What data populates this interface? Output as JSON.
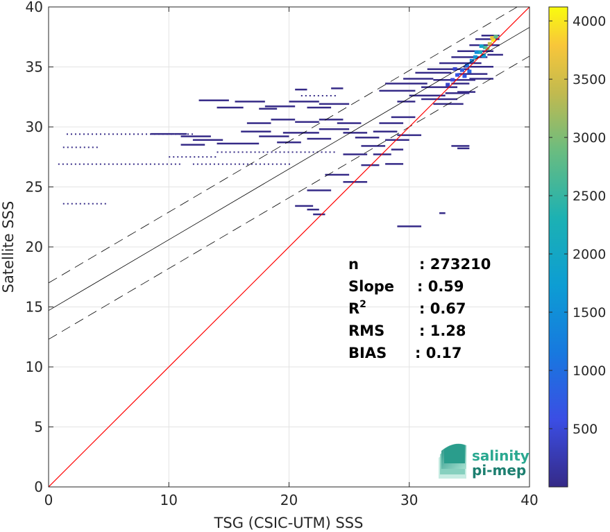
{
  "chart_data": {
    "type": "heatmap",
    "title": "",
    "xlabel": "TSG (CSIC-UTM) SSS",
    "ylabel": "Satellite SSS",
    "xlim": [
      0,
      40
    ],
    "ylim": [
      0,
      40
    ],
    "xticks": [
      "0",
      "10",
      "20",
      "30",
      "40"
    ],
    "yticks": [
      "0",
      "5",
      "10",
      "15",
      "20",
      "25",
      "30",
      "35",
      "40"
    ],
    "grid": true,
    "colormap": "parula",
    "colorbar": {
      "range": [
        0,
        4120
      ],
      "ticks": [
        "500",
        "1000",
        "1500",
        "2000",
        "2500",
        "3000",
        "3500",
        "4000"
      ]
    },
    "reference_lines": {
      "one_to_one": {
        "color": "#ff0000",
        "x": [
          0,
          40
        ],
        "y": [
          0,
          40
        ]
      },
      "regression": {
        "color": "#000000",
        "x": [
          0,
          40
        ],
        "y": [
          14.7,
          38.3
        ]
      },
      "upper_bound": {
        "color": "#000000",
        "style": "dashed",
        "x": [
          0,
          40
        ],
        "y": [
          17.0,
          40.6
        ]
      },
      "lower_bound": {
        "color": "#000000",
        "style": "dashed",
        "x": [
          0,
          40
        ],
        "y": [
          12.3,
          35.9
        ]
      }
    },
    "stats": [
      {
        "label": "n",
        "value": ": 273210"
      },
      {
        "label": "Slope",
        "value": ": 0.59"
      },
      {
        "label": "R",
        "sup": "2",
        "value": ": 0.67"
      },
      {
        "label": "RMS",
        "value": ": 1.28"
      },
      {
        "label": "BIAS",
        "value": ": 0.17"
      }
    ],
    "density_segments": [
      {
        "x0": 12.5,
        "x1": 15.0,
        "y": 32.2
      },
      {
        "x0": 14.0,
        "x1": 16.2,
        "y": 31.6
      },
      {
        "x0": 15.5,
        "x1": 18.0,
        "y": 32.1
      },
      {
        "x0": 18.0,
        "x1": 20.5,
        "y": 31.7
      },
      {
        "x0": 17.5,
        "x1": 19.0,
        "y": 31.5
      },
      {
        "x0": 20.0,
        "x1": 22.5,
        "y": 32.1
      },
      {
        "x0": 21.5,
        "x1": 23.5,
        "y": 31.6
      },
      {
        "x0": 22.5,
        "x1": 25.0,
        "y": 31.9
      },
      {
        "x0": 20.5,
        "x1": 21.5,
        "y": 33.1
      },
      {
        "x0": 23.5,
        "x1": 24.5,
        "y": 33.2
      },
      {
        "x0": 8.5,
        "x1": 10.5,
        "y": 29.4
      },
      {
        "x0": 10.5,
        "x1": 11.5,
        "y": 29.4
      },
      {
        "x0": 11.0,
        "x1": 13.5,
        "y": 29.2
      },
      {
        "x0": 12.0,
        "x1": 14.5,
        "y": 28.9
      },
      {
        "x0": 14.0,
        "x1": 17.5,
        "y": 28.6
      },
      {
        "x0": 16.0,
        "x1": 18.5,
        "y": 29.6
      },
      {
        "x0": 17.5,
        "x1": 20.0,
        "y": 29.2
      },
      {
        "x0": 19.0,
        "x1": 21.0,
        "y": 28.7
      },
      {
        "x0": 11.0,
        "x1": 13.0,
        "y": 28.5
      },
      {
        "x0": 19.5,
        "x1": 22.5,
        "y": 29.5
      },
      {
        "x0": 21.5,
        "x1": 23.5,
        "y": 29.0
      },
      {
        "x0": 22.5,
        "x1": 25.0,
        "y": 29.8
      },
      {
        "x0": 16.5,
        "x1": 18.5,
        "y": 30.3
      },
      {
        "x0": 18.5,
        "x1": 20.5,
        "y": 30.6
      },
      {
        "x0": 20.5,
        "x1": 22.5,
        "y": 30.4
      },
      {
        "x0": 22.5,
        "x1": 24.5,
        "y": 30.6
      },
      {
        "x0": 24.0,
        "x1": 26.0,
        "y": 30.3
      },
      {
        "x0": 24.5,
        "x1": 26.5,
        "y": 29.5
      },
      {
        "x0": 25.5,
        "x1": 27.5,
        "y": 29.1
      },
      {
        "x0": 26.0,
        "x1": 28.0,
        "y": 28.4
      },
      {
        "x0": 27.0,
        "x1": 29.0,
        "y": 29.6
      },
      {
        "x0": 27.5,
        "x1": 29.5,
        "y": 30.3
      },
      {
        "x0": 28.0,
        "x1": 30.0,
        "y": 28.9
      },
      {
        "x0": 28.5,
        "x1": 30.5,
        "y": 30.8
      },
      {
        "x0": 28.5,
        "x1": 29.5,
        "y": 28.1
      },
      {
        "x0": 29.0,
        "x1": 31.0,
        "y": 29.3
      },
      {
        "x0": 24.5,
        "x1": 26.5,
        "y": 27.7
      },
      {
        "x0": 27.0,
        "x1": 28.5,
        "y": 27.7
      },
      {
        "x0": 26.0,
        "x1": 27.5,
        "y": 26.8
      },
      {
        "x0": 28.0,
        "x1": 29.5,
        "y": 26.9
      },
      {
        "x0": 23.0,
        "x1": 25.0,
        "y": 26.0
      },
      {
        "x0": 24.5,
        "x1": 26.5,
        "y": 25.4
      },
      {
        "x0": 21.5,
        "x1": 23.5,
        "y": 24.7
      },
      {
        "x0": 20.5,
        "x1": 22.0,
        "y": 23.4
      },
      {
        "x0": 21.5,
        "x1": 22.5,
        "y": 23.1
      },
      {
        "x0": 22.0,
        "x1": 23.0,
        "y": 22.7
      },
      {
        "x0": 29.0,
        "x1": 31.0,
        "y": 21.7
      },
      {
        "x0": 32.5,
        "x1": 33.0,
        "y": 22.8
      },
      {
        "x0": 33.5,
        "x1": 35.0,
        "y": 28.4
      },
      {
        "x0": 34.0,
        "x1": 35.0,
        "y": 28.2
      },
      {
        "x0": 27.5,
        "x1": 30.5,
        "y": 33.0
      },
      {
        "x0": 28.0,
        "x1": 31.5,
        "y": 33.6
      },
      {
        "x0": 29.5,
        "x1": 32.0,
        "y": 34.0
      },
      {
        "x0": 30.0,
        "x1": 33.0,
        "y": 32.6
      },
      {
        "x0": 30.5,
        "x1": 33.5,
        "y": 34.5
      },
      {
        "x0": 31.0,
        "x1": 34.0,
        "y": 33.3
      },
      {
        "x0": 31.0,
        "x1": 34.0,
        "y": 32.3
      },
      {
        "x0": 31.5,
        "x1": 35.0,
        "y": 34.8
      },
      {
        "x0": 32.0,
        "x1": 35.5,
        "y": 33.9
      },
      {
        "x0": 32.0,
        "x1": 34.5,
        "y": 31.9
      },
      {
        "x0": 32.5,
        "x1": 36.0,
        "y": 35.3
      },
      {
        "x0": 33.0,
        "x1": 35.0,
        "y": 32.8
      },
      {
        "x0": 33.5,
        "x1": 36.5,
        "y": 35.8
      },
      {
        "x0": 34.0,
        "x1": 36.5,
        "y": 34.4
      },
      {
        "x0": 34.0,
        "x1": 37.0,
        "y": 36.3
      },
      {
        "x0": 34.5,
        "x1": 37.0,
        "y": 35.0
      },
      {
        "x0": 35.0,
        "x1": 37.5,
        "y": 36.8
      },
      {
        "x0": 35.0,
        "x1": 37.0,
        "y": 34.0
      },
      {
        "x0": 35.5,
        "x1": 37.5,
        "y": 37.3
      },
      {
        "x0": 36.0,
        "x1": 37.5,
        "y": 37.6
      },
      {
        "x0": 33.5,
        "x1": 35.0,
        "y": 33.6
      },
      {
        "x0": 34.0,
        "x1": 35.5,
        "y": 32.9
      },
      {
        "x0": 36.5,
        "x1": 37.8,
        "y": 36.0
      },
      {
        "x0": 29.0,
        "x1": 30.5,
        "y": 32.1
      }
    ],
    "density_dashes": [
      {
        "x0": 1.5,
        "x1": 12.0,
        "y": 29.4
      },
      {
        "x0": 0.8,
        "x1": 11.0,
        "y": 26.9
      },
      {
        "x0": 1.2,
        "x1": 5.0,
        "y": 23.6
      },
      {
        "x0": 1.2,
        "x1": 4.0,
        "y": 28.3
      },
      {
        "x0": 12.0,
        "x1": 20.0,
        "y": 26.9
      },
      {
        "x0": 14.0,
        "x1": 24.0,
        "y": 27.9
      },
      {
        "x0": 10.0,
        "x1": 14.0,
        "y": 27.5
      },
      {
        "x0": 21.0,
        "x1": 24.0,
        "y": 32.6
      }
    ],
    "density_points": [
      {
        "x": 37.0,
        "y": 37.2,
        "v": 4000
      },
      {
        "x": 36.7,
        "y": 36.9,
        "v": 3400
      },
      {
        "x": 36.3,
        "y": 36.6,
        "v": 2600
      },
      {
        "x": 35.9,
        "y": 36.2,
        "v": 2100
      },
      {
        "x": 36.5,
        "y": 36.5,
        "v": 3000
      },
      {
        "x": 35.5,
        "y": 35.8,
        "v": 1600
      },
      {
        "x": 35.2,
        "y": 35.5,
        "v": 1300
      },
      {
        "x": 34.8,
        "y": 35.1,
        "v": 1000
      },
      {
        "x": 34.4,
        "y": 34.7,
        "v": 800
      },
      {
        "x": 34.0,
        "y": 34.3,
        "v": 650
      },
      {
        "x": 33.6,
        "y": 33.9,
        "v": 500
      },
      {
        "x": 33.2,
        "y": 33.5,
        "v": 420
      },
      {
        "x": 35.6,
        "y": 36.2,
        "v": 1500
      },
      {
        "x": 36.0,
        "y": 36.7,
        "v": 1900
      },
      {
        "x": 36.9,
        "y": 37.4,
        "v": 3700
      },
      {
        "x": 37.2,
        "y": 37.5,
        "v": 2800
      },
      {
        "x": 36.2,
        "y": 35.9,
        "v": 1700
      },
      {
        "x": 34.6,
        "y": 34.2,
        "v": 700
      },
      {
        "x": 35.0,
        "y": 34.6,
        "v": 900
      },
      {
        "x": 33.8,
        "y": 34.8,
        "v": 450
      }
    ]
  },
  "logo": {
    "line1": "salinity",
    "line2": "pi-mep"
  }
}
